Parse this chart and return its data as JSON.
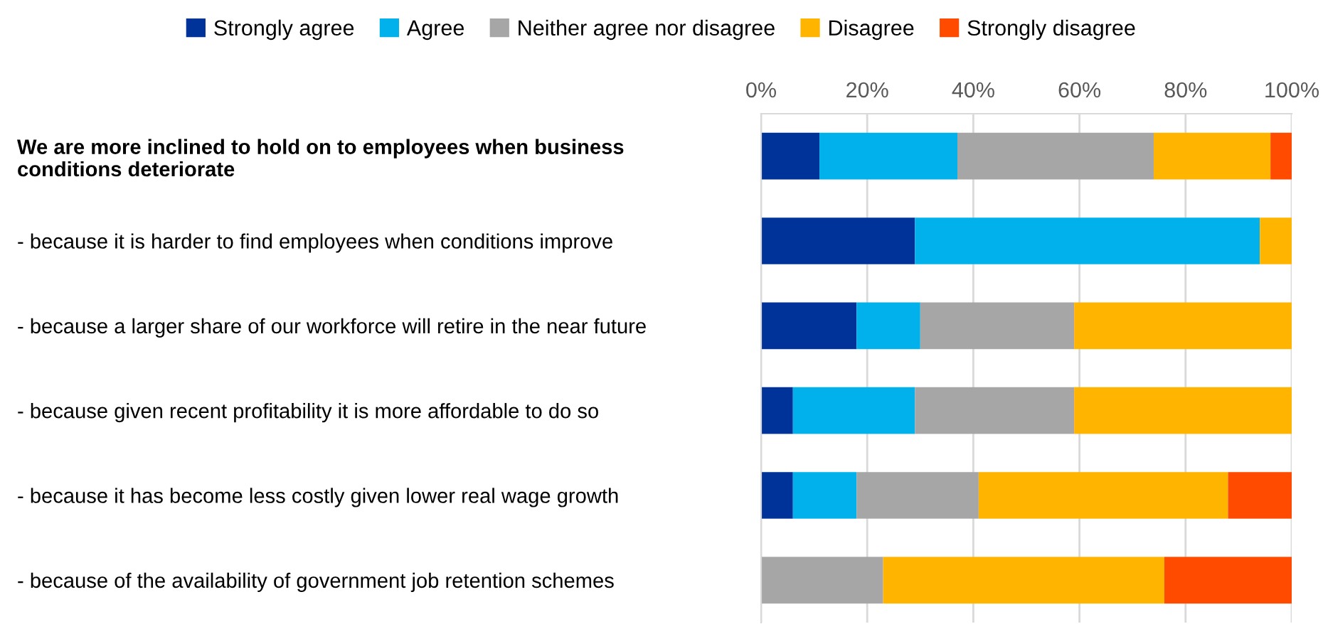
{
  "chart_data": {
    "type": "bar",
    "orientation": "horizontal",
    "stacked": true,
    "categories": [
      "We are more inclined to hold on to employees when business\nconditions deteriorate",
      "- because it is harder to find employees when conditions improve",
      "- because a larger share of our workforce will retire in the near future",
      "- because given recent profitability it is more affordable to do so",
      "- because it has become less costly given lower real wage growth",
      "- because of the availability of government job retention schemes"
    ],
    "series": [
      {
        "name": "Strongly agree",
        "color": "#003399",
        "values": [
          11,
          29,
          18,
          6,
          6,
          0
        ]
      },
      {
        "name": "Agree",
        "color": "#00b1eb",
        "values": [
          26,
          65,
          12,
          23,
          12,
          0
        ]
      },
      {
        "name": "Neither agree nor disagree",
        "color": "#a6a6a6",
        "values": [
          37,
          0,
          29,
          30,
          23,
          23
        ]
      },
      {
        "name": "Disagree",
        "color": "#ffb400",
        "values": [
          22,
          6,
          41,
          41,
          47,
          53
        ]
      },
      {
        "name": "Strongly disagree",
        "color": "#ff4b00",
        "values": [
          4,
          0,
          0,
          0,
          12,
          24
        ]
      }
    ],
    "xlim": [
      0,
      100
    ],
    "xticks": [
      {
        "value": 0,
        "label": "0%"
      },
      {
        "value": 20,
        "label": "20%"
      },
      {
        "value": 40,
        "label": "40%"
      },
      {
        "value": 60,
        "label": "60%"
      },
      {
        "value": 80,
        "label": "80%"
      },
      {
        "value": 100,
        "label": "100%"
      }
    ],
    "grid": "x",
    "legend": "top"
  }
}
